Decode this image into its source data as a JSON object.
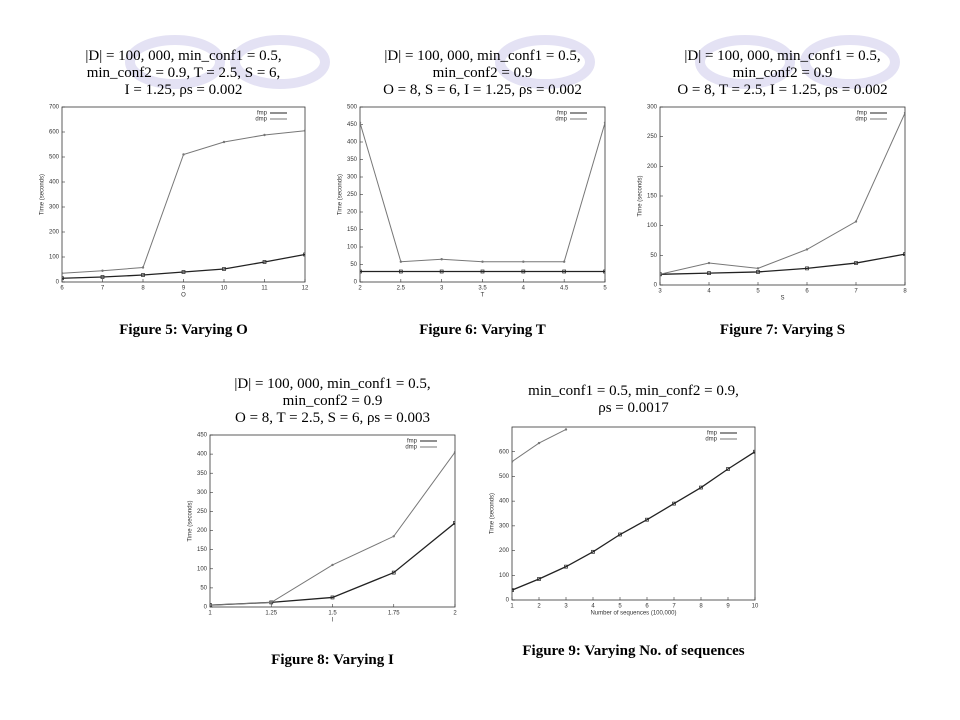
{
  "chart_data": [
    {
      "type": "line",
      "title": [
        "|D| = 100, 000, min_conf1 = 0.5,",
        "min_conf2 = 0.9, T = 2.5, S = 6,",
        "I = 1.25, ρs = 0.002"
      ],
      "caption": "Figure 5: Varying O",
      "x_label": "O",
      "y_label": "Time (seconds)",
      "x": [
        6,
        7,
        8,
        9,
        10,
        11,
        12
      ],
      "series": [
        {
          "name": "fmp",
          "color": "#222222",
          "values": [
            15,
            20,
            28,
            40,
            52,
            80,
            110
          ]
        },
        {
          "name": "dmp",
          "color": "#777777",
          "values": [
            35,
            45,
            58,
            510,
            560,
            588,
            605
          ]
        }
      ],
      "xlim": [
        6,
        12
      ],
      "xticks": [
        6,
        7,
        8,
        9,
        10,
        11,
        12
      ],
      "ylim": [
        0,
        700
      ],
      "yticks": [
        0,
        100,
        200,
        300,
        400,
        500,
        600,
        700
      ]
    },
    {
      "type": "line",
      "title": [
        "|D| = 100, 000, min_conf1 = 0.5,",
        "min_conf2 = 0.9",
        "O = 8, S = 6, I = 1.25, ρs = 0.002"
      ],
      "caption": "Figure 6: Varying T",
      "x_label": "T",
      "y_label": "Time (seconds)",
      "x": [
        2,
        2.5,
        3,
        3.5,
        4,
        4.5,
        5
      ],
      "series": [
        {
          "name": "fmp",
          "color": "#222222",
          "values": [
            30,
            30,
            30,
            30,
            30,
            30,
            30
          ]
        },
        {
          "name": "dmp",
          "color": "#777777",
          "values": [
            455,
            58,
            65,
            58,
            58,
            58,
            455
          ]
        }
      ],
      "xlim": [
        2,
        5
      ],
      "xticks": [
        2,
        2.5,
        3,
        3.5,
        4,
        4.5,
        5
      ],
      "ylim": [
        0,
        500
      ],
      "yticks": [
        0,
        50,
        100,
        150,
        200,
        250,
        300,
        350,
        400,
        450,
        500
      ]
    },
    {
      "type": "line",
      "title": [
        "|D| = 100, 000, min_conf1 = 0.5,",
        "min_conf2 = 0.9",
        "O = 8, T = 2.5, I = 1.25, ρs = 0.002"
      ],
      "caption": "Figure 7: Varying S",
      "x_label": "S",
      "y_label": "Time (seconds)",
      "x": [
        3,
        4,
        5,
        6,
        7,
        8
      ],
      "series": [
        {
          "name": "fmp",
          "color": "#222222",
          "values": [
            18,
            20,
            22,
            28,
            37,
            52
          ]
        },
        {
          "name": "dmp",
          "color": "#777777",
          "values": [
            18,
            37,
            28,
            60,
            107,
            290
          ]
        }
      ],
      "xlim": [
        3,
        8
      ],
      "xticks": [
        3,
        4,
        5,
        6,
        7,
        8
      ],
      "ylim": [
        0,
        300
      ],
      "yticks": [
        0,
        50,
        100,
        150,
        200,
        250,
        300
      ]
    },
    {
      "type": "line",
      "title": [
        "|D| = 100, 000, min_conf1 = 0.5,",
        "min_conf2 = 0.9",
        "O = 8, T = 2.5, S = 6, ρs = 0.003"
      ],
      "caption": "Figure 8: Varying I",
      "x_label": "I",
      "y_label": "Time (seconds)",
      "x": [
        1,
        1.25,
        1.5,
        1.75,
        2
      ],
      "series": [
        {
          "name": "fmp",
          "color": "#222222",
          "values": [
            5,
            12,
            25,
            90,
            220
          ]
        },
        {
          "name": "dmp",
          "color": "#777777",
          "values": [
            5,
            12,
            110,
            185,
            405
          ]
        }
      ],
      "xlim": [
        1,
        2
      ],
      "xticks": [
        1,
        1.25,
        1.5,
        1.75,
        2
      ],
      "ylim": [
        0,
        450
      ],
      "yticks": [
        0,
        50,
        100,
        150,
        200,
        250,
        300,
        350,
        400,
        450
      ]
    },
    {
      "type": "line",
      "title": [
        "min_conf1 = 0.5, min_conf2 = 0.9,",
        "ρs = 0.0017"
      ],
      "caption": "Figure 9: Varying No. of sequences",
      "x_label": "Number of sequences (100,000)",
      "y_label": "Time (seconds)",
      "x": [
        1,
        2,
        3,
        4,
        5,
        6,
        7,
        8,
        9,
        10
      ],
      "series": [
        {
          "name": "fmp",
          "color": "#222222",
          "values": [
            40,
            85,
            135,
            195,
            265,
            325,
            390,
            455,
            530,
            600
          ]
        },
        {
          "name": "dmp",
          "color": "#777777",
          "values": [
            560,
            635,
            690,
            null,
            null,
            null,
            null,
            null,
            null,
            null
          ]
        }
      ],
      "xlim": [
        1,
        10
      ],
      "xticks": [
        1,
        2,
        3,
        4,
        5,
        6,
        7,
        8,
        9,
        10
      ],
      "ylim": [
        0,
        700
      ],
      "yticks": [
        0,
        100,
        200,
        300,
        400,
        500,
        600
      ]
    }
  ]
}
